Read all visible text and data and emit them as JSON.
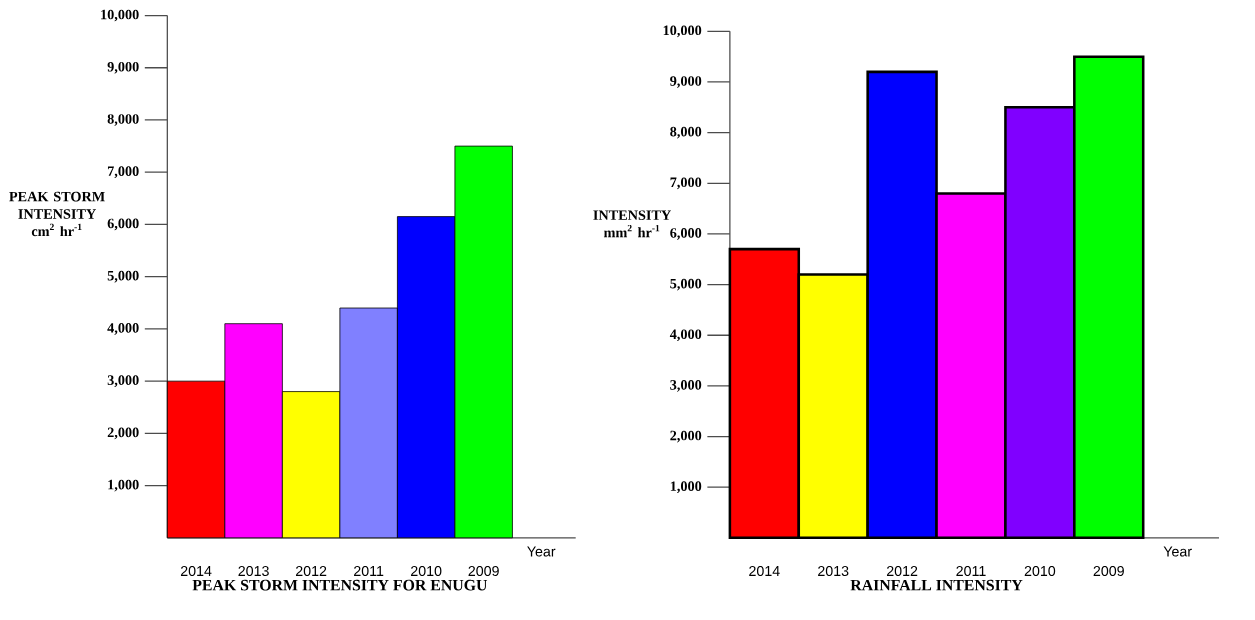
{
  "chart_data": [
    {
      "type": "bar",
      "title": "PEAK STORM INTENSITY FOR ENUGU",
      "xlabel": "Year",
      "ylabel": "PEAK STORM INTENSITY cm$^{2}$ hr$^{-1}$",
      "categories": [
        "2014",
        "2013",
        "2012",
        "2011",
        "2010",
        "2009"
      ],
      "values": [
        3000,
        4100,
        2800,
        4400,
        6150,
        7500
      ],
      "colors": [
        "#ff0000",
        "#ff00ff",
        "#ffff00",
        "#8080ff",
        "#0000ff",
        "#00ff00"
      ],
      "ylim": [
        0,
        10000
      ],
      "yticks": [
        {
          "value": 1000,
          "label": "1,000"
        },
        {
          "value": 2000,
          "label": "2,000"
        },
        {
          "value": 3000,
          "label": "3,000"
        },
        {
          "value": 4000,
          "label": "4,000"
        },
        {
          "value": 5000,
          "label": "5,000"
        },
        {
          "value": 6000,
          "label": "6,000"
        },
        {
          "value": 7000,
          "label": "7,000"
        },
        {
          "value": 8000,
          "label": "8,000"
        },
        {
          "value": 9000,
          "label": "9,000"
        },
        {
          "value": 10000,
          "label": "10,000"
        }
      ]
    },
    {
      "type": "bar",
      "title": "RAINFALL INTENSITY",
      "xlabel": "Year",
      "ylabel": "INTENSITY mm$^{2}$ hr$^{-1}$",
      "categories": [
        "2014",
        "2013",
        "2012",
        "2011",
        "2010",
        "2009"
      ],
      "values": [
        5700,
        5200,
        9200,
        6800,
        8500,
        9500
      ],
      "colors": [
        "#ff0000",
        "#ffff00",
        "#0000ff",
        "#ff00ff",
        "#8000ff",
        "#00ff00"
      ],
      "ylim": [
        0,
        10000
      ],
      "yticks": [
        {
          "value": 1000,
          "label": "1,000"
        },
        {
          "value": 2000,
          "label": "2,000"
        },
        {
          "value": 3000,
          "label": "3,000"
        },
        {
          "value": 4000,
          "label": "4,000"
        },
        {
          "value": 5000,
          "label": "5,000"
        },
        {
          "value": 6000,
          "label": "6,000"
        },
        {
          "value": 7000,
          "label": "7,000"
        },
        {
          "value": 8000,
          "label": "8,000"
        },
        {
          "value": 9000,
          "label": "9,000"
        },
        {
          "value": 10000,
          "label": "10,000"
        }
      ]
    }
  ]
}
